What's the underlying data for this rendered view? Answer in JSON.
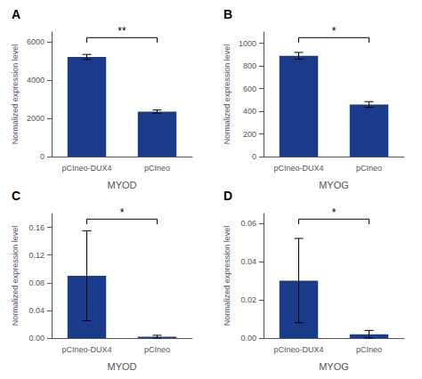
{
  "chart_data": [
    {
      "type": "bar",
      "title": "A",
      "xlabel": "MYOD",
      "ylabel": "Normalized expression level",
      "categories": [
        "pCIneo-DUX4",
        "pCIneo"
      ],
      "values": [
        5200,
        2350
      ],
      "errors": [
        130,
        80
      ],
      "color": "#1a3a8c",
      "ylim": [
        0,
        6500
      ],
      "yticks": [
        0,
        2000,
        4000,
        6000
      ],
      "grid": false,
      "annotations": [
        {
          "text": "**",
          "between": [
            "pCIneo-DUX4",
            "pCIneo"
          ]
        }
      ]
    },
    {
      "type": "bar",
      "title": "B",
      "xlabel": "MYOG",
      "ylabel": "Normalized expression level",
      "categories": [
        "pCIneo-DUX4",
        "pCIneo"
      ],
      "values": [
        890,
        460
      ],
      "errors": [
        30,
        25
      ],
      "color": "#1a3a8c",
      "ylim": [
        0,
        1100
      ],
      "yticks": [
        0,
        200,
        400,
        600,
        800,
        1000
      ],
      "grid": false,
      "annotations": [
        {
          "text": "*",
          "between": [
            "pCIneo-DUX4",
            "pCIneo"
          ]
        }
      ]
    },
    {
      "type": "bar",
      "title": "C",
      "xlabel": "MYOD",
      "ylabel": "Normalized expression level",
      "categories": [
        "pCIneo-DUX4",
        "pCIneo"
      ],
      "values": [
        0.09,
        0.002
      ],
      "errors": [
        0.065,
        0.002
      ],
      "color": "#1a3a8c",
      "ylim": [
        0,
        0.18
      ],
      "yticks": [
        {
          "value": 0,
          "label": "0.00"
        },
        0.04,
        0.08,
        0.12,
        0.16
      ],
      "grid": false,
      "annotations": [
        {
          "text": "*",
          "between": [
            "pCIneo-DUX4",
            "pCIneo"
          ]
        }
      ]
    },
    {
      "type": "bar",
      "title": "D",
      "xlabel": "MYOG",
      "ylabel": "Normalized expression level",
      "categories": [
        "pCIneo-DUX4",
        "pCIneo"
      ],
      "values": [
        0.03,
        0.002
      ],
      "errors": [
        0.022,
        0.002
      ],
      "color": "#1a3a8c",
      "ylim": [
        0,
        0.065
      ],
      "yticks": [
        {
          "value": 0,
          "label": "0.00"
        },
        0.02,
        0.04,
        0.06
      ],
      "grid": false,
      "annotations": [
        {
          "text": "*",
          "between": [
            "pCIneo-DUX4",
            "pCIneo"
          ]
        }
      ]
    }
  ]
}
